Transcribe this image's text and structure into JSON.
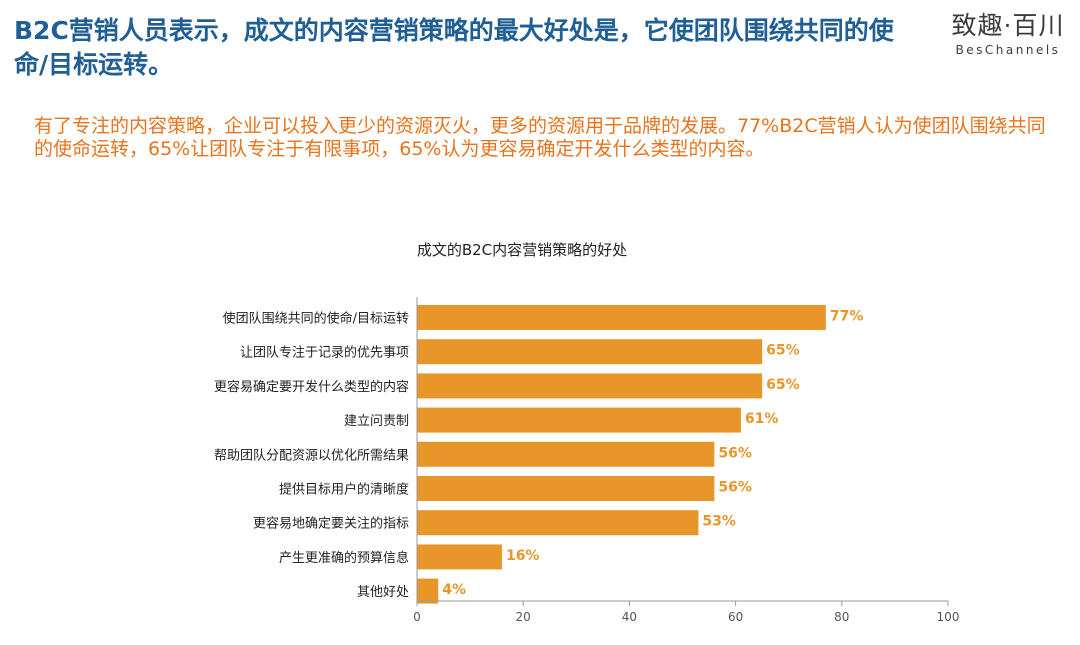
{
  "header": {
    "headline": "B2C营销人员表示，成文的内容营销策略的最大好处是，它使团队围绕共同的使命/目标运转。",
    "logo_main": "致趣·百川",
    "logo_sub": "BesChannels"
  },
  "subhead": "有了专注的内容策略，企业可以投入更少的资源灭火，更多的资源用于品牌的发展。77%B2C营销人认为使团队围绕共同的使命运转，65%让团队专注于有限事项，65%认为更容易确定开发什么类型的内容。",
  "colors": {
    "headline": "#1f5f95",
    "subhead": "#e8731d",
    "bar": "#e8962a",
    "data_label": "#e8962a"
  },
  "chart_data": {
    "type": "bar",
    "orientation": "horizontal",
    "title": "成文的B2C内容营销策略的好处",
    "categories": [
      "使团队围绕共同的使命/目标运转",
      "让团队专注于记录的优先事项",
      "更容易确定要开发什么类型的内容",
      "建立问责制",
      "帮助团队分配资源以优化所需结果",
      "提供目标用户的清晰度",
      "更容易地确定要关注的指标",
      "产生更准确的预算信息",
      "其他好处"
    ],
    "values": [
      77,
      65,
      65,
      61,
      56,
      56,
      53,
      16,
      4
    ],
    "data_labels": [
      "77%",
      "65%",
      "65%",
      "61%",
      "56%",
      "56%",
      "53%",
      "16%",
      "4%"
    ],
    "xlim": [
      0,
      100
    ],
    "x_ticks": [
      0,
      20,
      40,
      60,
      80,
      100
    ],
    "grid": false,
    "legend": "none"
  }
}
